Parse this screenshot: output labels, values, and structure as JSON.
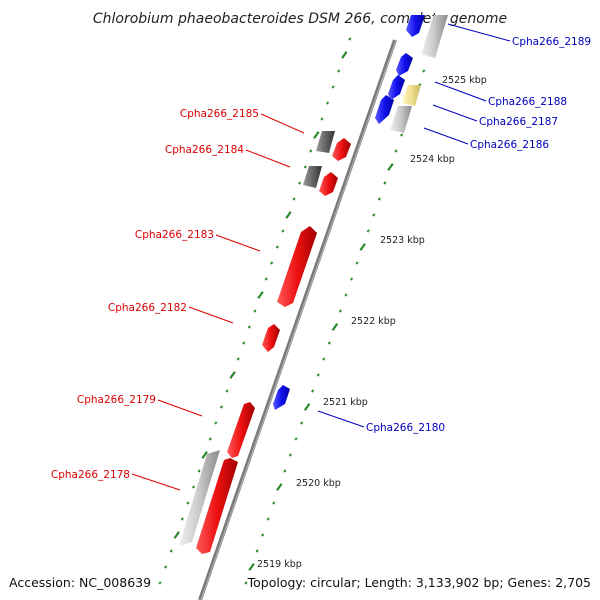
{
  "title": "Chlorobium phaeobacteroides DSM 266, complete genome",
  "footer": {
    "accession": "Accession: NC_008639",
    "stats": "Topology: circular; Length: 3,133,902 bp; Genes: 2,705"
  },
  "colors": {
    "backbone": "#777777",
    "tick": "#2a8a2a",
    "minus_strand_gene": "#ee1111",
    "plus_strand_gene": "#1111ee",
    "other_feature": "#c8c8c8",
    "dark_feature": "#666666",
    "rna_feature": "#f0e090",
    "minus_label": "#dd0000",
    "plus_label": "#0000bb"
  },
  "kbp_markers": [
    "2519 kbp",
    "2520 kbp",
    "2521 kbp",
    "2522 kbp",
    "2523 kbp",
    "2524 kbp",
    "2525 kbp"
  ],
  "genes": [
    {
      "id": "Cpha266_2178",
      "strand": "minus"
    },
    {
      "id": "Cpha266_2179",
      "strand": "minus"
    },
    {
      "id": "Cpha266_2180",
      "strand": "plus"
    },
    {
      "id": "Cpha266_2182",
      "strand": "minus"
    },
    {
      "id": "Cpha266_2183",
      "strand": "minus"
    },
    {
      "id": "Cpha266_2184",
      "strand": "minus"
    },
    {
      "id": "Cpha266_2185",
      "strand": "minus"
    },
    {
      "id": "Cpha266_2186",
      "strand": "plus"
    },
    {
      "id": "Cpha266_2187",
      "strand": "plus"
    },
    {
      "id": "Cpha266_2188",
      "strand": "plus"
    },
    {
      "id": "Cpha266_2189",
      "strand": "plus"
    }
  ]
}
